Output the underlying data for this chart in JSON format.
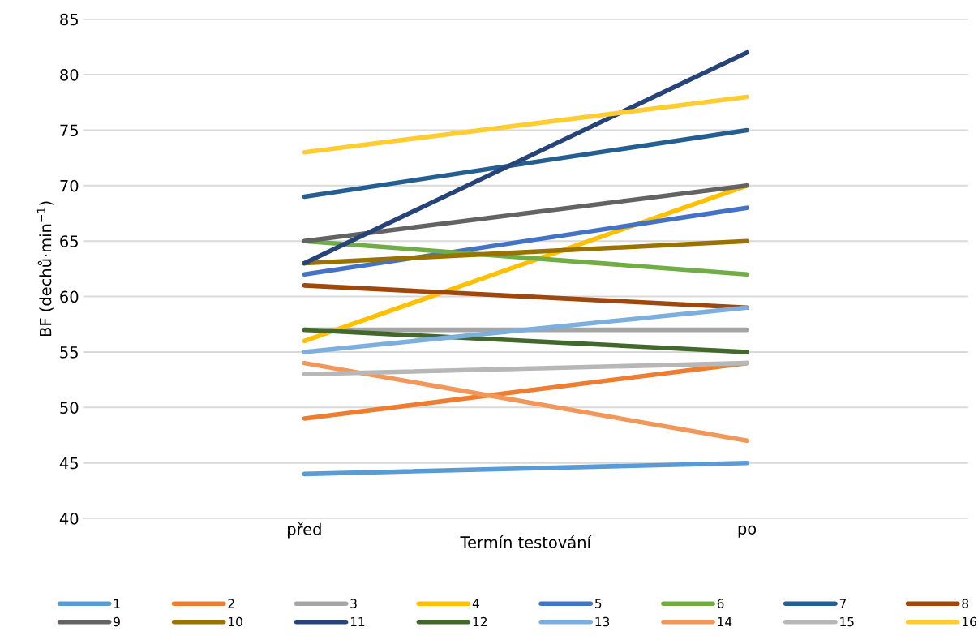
{
  "chart_data": {
    "type": "line",
    "xlabel": "Termín testování",
    "ylabel": "BF (dechů·min$^{−1}$)",
    "categories": [
      "před",
      "po"
    ],
    "ylim": [
      40,
      85
    ],
    "yticks": [
      40,
      45,
      50,
      55,
      60,
      65,
      70,
      75,
      80,
      85
    ],
    "grid": "y",
    "legend": "bottom",
    "marker": "none",
    "line_style": "solid",
    "series": [
      {
        "name": "1",
        "color": "#5b9bd5",
        "values": [
          44,
          45
        ]
      },
      {
        "name": "2",
        "color": "#ed7d31",
        "values": [
          49,
          54
        ]
      },
      {
        "name": "3",
        "color": "#a5a5a5",
        "values": [
          57,
          57
        ]
      },
      {
        "name": "4",
        "color": "#ffc000",
        "values": [
          56,
          70
        ]
      },
      {
        "name": "5",
        "color": "#4472c4",
        "values": [
          62,
          68
        ]
      },
      {
        "name": "6",
        "color": "#70ad47",
        "values": [
          65,
          62
        ]
      },
      {
        "name": "7",
        "color": "#255e91",
        "values": [
          69,
          75
        ]
      },
      {
        "name": "8",
        "color": "#9e480e",
        "values": [
          61,
          59
        ]
      },
      {
        "name": "9",
        "color": "#636363",
        "values": [
          65,
          70
        ]
      },
      {
        "name": "10",
        "color": "#997300",
        "values": [
          63,
          65
        ]
      },
      {
        "name": "11",
        "color": "#264478",
        "values": [
          63,
          82
        ]
      },
      {
        "name": "12",
        "color": "#43682b",
        "values": [
          57,
          55
        ]
      },
      {
        "name": "13",
        "color": "#7cafdd",
        "values": [
          55,
          59
        ]
      },
      {
        "name": "14",
        "color": "#f1975a",
        "values": [
          54,
          47
        ]
      },
      {
        "name": "15",
        "color": "#b7b7b7",
        "values": [
          53,
          54
        ]
      },
      {
        "name": "16",
        "color": "#ffcd33",
        "values": [
          73,
          78
        ]
      }
    ]
  }
}
